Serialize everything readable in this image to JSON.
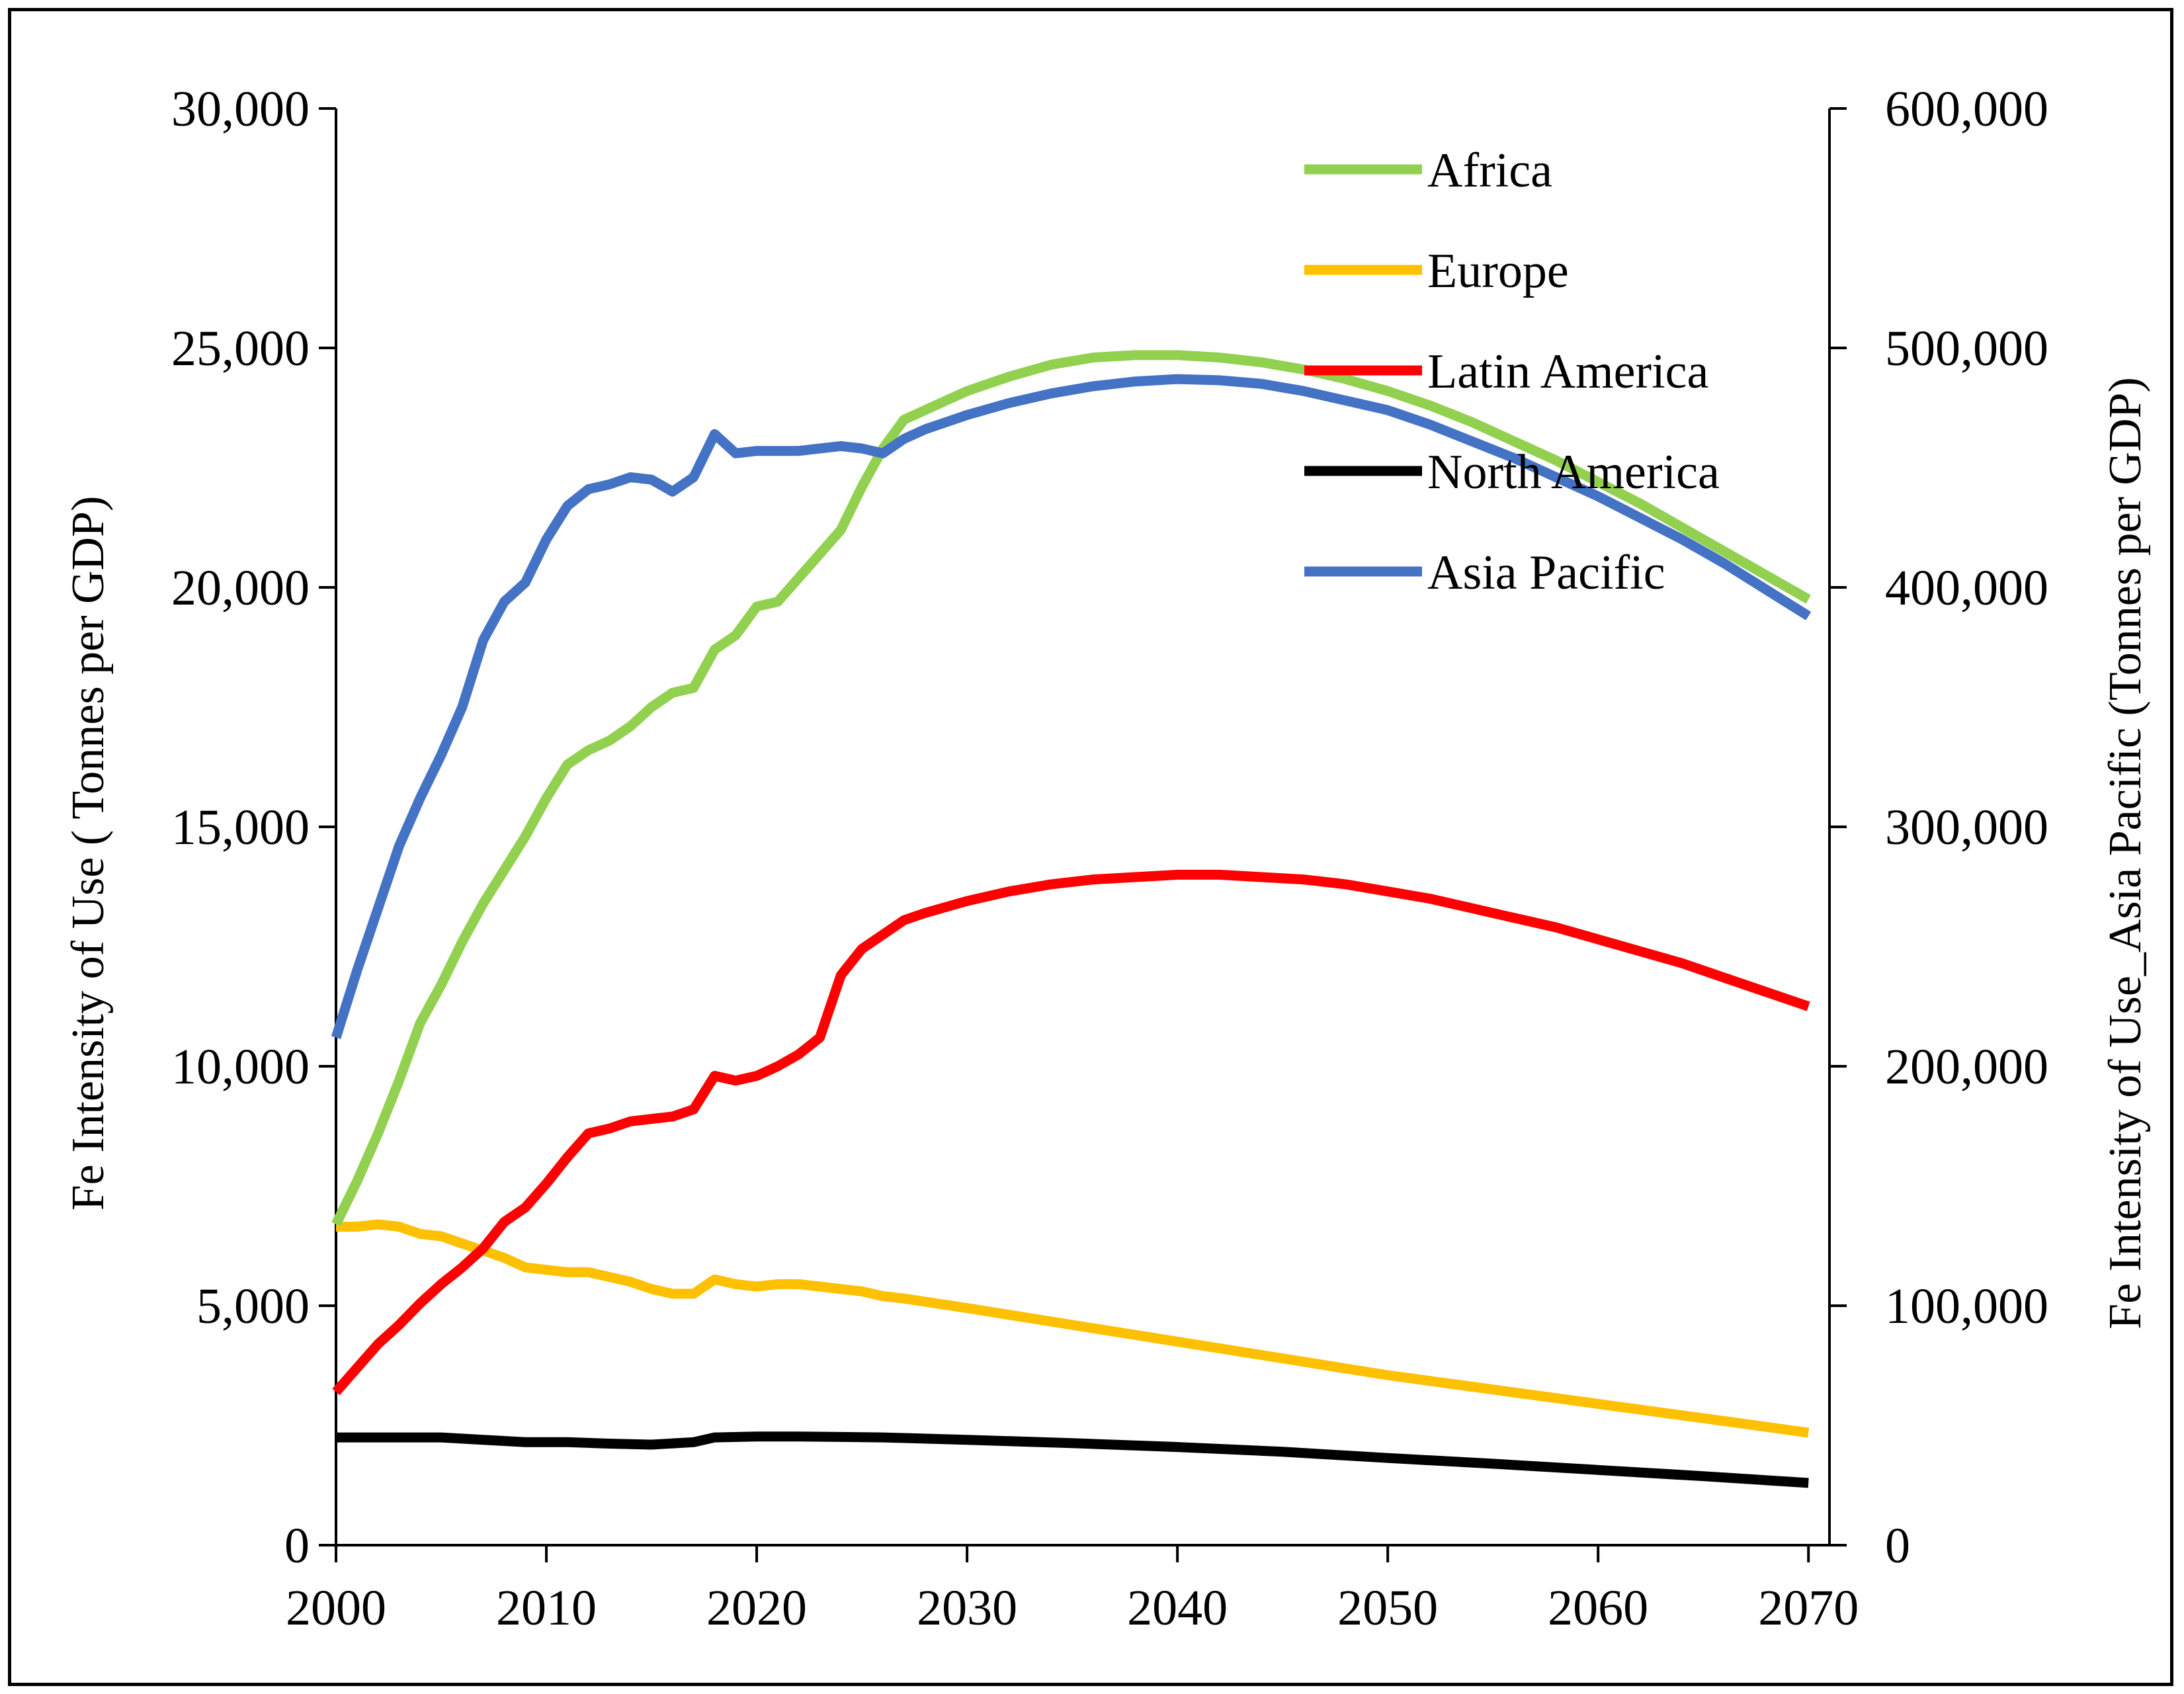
{
  "chart_data": {
    "type": "line",
    "title": "",
    "xlabel": "",
    "ylabel_left": "Fe Intensity of Use ( Tonnes per  GDP)",
    "ylabel_right": "Fe Intensity of Use_Asia Pacific (Tonnes per GDP)",
    "xlim": [
      2000,
      2071
    ],
    "ylim_left": [
      0,
      30000
    ],
    "ylim_right": [
      0,
      600000
    ],
    "x_ticks": [
      2000,
      2010,
      2020,
      2030,
      2040,
      2050,
      2060,
      2070
    ],
    "x_tick_labels": [
      "2000",
      "2010",
      "2020",
      "2030",
      "2040",
      "2050",
      "2060",
      "2070"
    ],
    "y_left_ticks": [
      0,
      5000,
      10000,
      15000,
      20000,
      25000,
      30000
    ],
    "y_left_tick_labels": [
      "0",
      "5,000",
      "10,000",
      "15,000",
      "20,000",
      "25,000",
      "30,000"
    ],
    "y_right_ticks": [
      0,
      100000,
      200000,
      300000,
      400000,
      500000,
      600000
    ],
    "y_right_tick_labels": [
      "0",
      "100,000",
      "200,000",
      "300,000",
      "400,000",
      "500,000",
      "600,000"
    ],
    "grid": false,
    "legend_position": "top-right",
    "series": [
      {
        "name": "Africa",
        "color": "#92D050",
        "axis": "left",
        "x": [
          2000,
          2001,
          2002,
          2003,
          2004,
          2005,
          2006,
          2007,
          2008,
          2009,
          2010,
          2011,
          2012,
          2013,
          2014,
          2015,
          2016,
          2017,
          2018,
          2019,
          2020,
          2021,
          2022,
          2023,
          2024,
          2025,
          2026,
          2027,
          2028,
          2030,
          2032,
          2034,
          2036,
          2038,
          2040,
          2042,
          2044,
          2046,
          2048,
          2050,
          2052,
          2054,
          2056,
          2058,
          2060,
          2062,
          2064,
          2066,
          2068,
          2070
        ],
        "values": [
          6700,
          7600,
          8600,
          9700,
          10900,
          11700,
          12600,
          13400,
          14100,
          14800,
          15600,
          16300,
          16600,
          16800,
          17100,
          17500,
          17800,
          17900,
          18700,
          19000,
          19600,
          19700,
          20200,
          20700,
          21200,
          22100,
          22900,
          23500,
          23700,
          24100,
          24400,
          24650,
          24800,
          24850,
          24850,
          24800,
          24700,
          24550,
          24350,
          24100,
          23800,
          23450,
          23050,
          22650,
          22200,
          21750,
          21250,
          20750,
          20250,
          19750
        ]
      },
      {
        "name": "Europe",
        "color": "#FFC000",
        "axis": "left",
        "x": [
          2000,
          2001,
          2002,
          2003,
          2004,
          2005,
          2006,
          2007,
          2008,
          2009,
          2010,
          2011,
          2012,
          2013,
          2014,
          2015,
          2016,
          2017,
          2018,
          2019,
          2020,
          2021,
          2022,
          2023,
          2024,
          2025,
          2026,
          2027,
          2030,
          2035,
          2040,
          2045,
          2050,
          2055,
          2060,
          2065,
          2070
        ],
        "values": [
          6650,
          6650,
          6700,
          6650,
          6500,
          6450,
          6300,
          6150,
          6000,
          5800,
          5750,
          5700,
          5700,
          5600,
          5500,
          5350,
          5250,
          5250,
          5550,
          5450,
          5400,
          5450,
          5450,
          5400,
          5350,
          5300,
          5200,
          5150,
          4950,
          4600,
          4250,
          3900,
          3550,
          3250,
          2950,
          2650,
          2350
        ]
      },
      {
        "name": "Latin America",
        "color": "#FF0000",
        "axis": "left",
        "x": [
          2000,
          2001,
          2002,
          2003,
          2004,
          2005,
          2006,
          2007,
          2008,
          2009,
          2010,
          2011,
          2012,
          2013,
          2014,
          2015,
          2016,
          2017,
          2018,
          2019,
          2020,
          2021,
          2022,
          2023,
          2024,
          2025,
          2026,
          2027,
          2028,
          2030,
          2032,
          2034,
          2036,
          2038,
          2040,
          2042,
          2044,
          2046,
          2048,
          2050,
          2052,
          2054,
          2056,
          2058,
          2060,
          2062,
          2064,
          2066,
          2068,
          2070
        ],
        "values": [
          3200,
          3700,
          4200,
          4600,
          5050,
          5450,
          5800,
          6200,
          6750,
          7050,
          7550,
          8100,
          8600,
          8700,
          8850,
          8900,
          8950,
          9100,
          9800,
          9700,
          9800,
          10000,
          10250,
          10600,
          11900,
          12450,
          12750,
          13050,
          13200,
          13450,
          13650,
          13800,
          13900,
          13950,
          14000,
          14000,
          13950,
          13900,
          13800,
          13650,
          13500,
          13300,
          13100,
          12900,
          12650,
          12400,
          12150,
          11850,
          11550,
          11250
        ]
      },
      {
        "name": "North America",
        "color": "#000000",
        "axis": "left",
        "x": [
          2000,
          2003,
          2005,
          2007,
          2009,
          2011,
          2013,
          2015,
          2017,
          2018,
          2020,
          2022,
          2024,
          2026,
          2030,
          2035,
          2040,
          2045,
          2050,
          2055,
          2060,
          2065,
          2070
        ],
        "values": [
          2250,
          2250,
          2250,
          2200,
          2150,
          2150,
          2120,
          2100,
          2150,
          2250,
          2270,
          2270,
          2260,
          2250,
          2200,
          2130,
          2050,
          1950,
          1820,
          1700,
          1570,
          1440,
          1300
        ]
      },
      {
        "name": "Asia Pacific",
        "color": "#4472C4",
        "axis": "right",
        "x": [
          2000,
          2001,
          2002,
          2003,
          2004,
          2005,
          2006,
          2007,
          2008,
          2009,
          2010,
          2011,
          2012,
          2013,
          2014,
          2015,
          2016,
          2017,
          2018,
          2019,
          2020,
          2021,
          2022,
          2023,
          2024,
          2025,
          2026,
          2027,
          2028,
          2030,
          2032,
          2034,
          2036,
          2038,
          2040,
          2042,
          2044,
          2046,
          2048,
          2050,
          2052,
          2054,
          2056,
          2058,
          2060,
          2062,
          2064,
          2066,
          2068,
          2070
        ],
        "values": [
          212000,
          240000,
          266000,
          292000,
          312000,
          330000,
          350000,
          378000,
          394000,
          402000,
          420000,
          434000,
          441000,
          443000,
          446000,
          445000,
          440000,
          446000,
          464000,
          456000,
          457000,
          457000,
          457000,
          458000,
          459000,
          458000,
          456000,
          462000,
          466000,
          472000,
          477000,
          481000,
          484000,
          486000,
          487000,
          486500,
          485000,
          482000,
          478000,
          474000,
          468000,
          461000,
          454000,
          446000,
          438000,
          429000,
          420000,
          410000,
          399000,
          388000
        ]
      }
    ]
  }
}
